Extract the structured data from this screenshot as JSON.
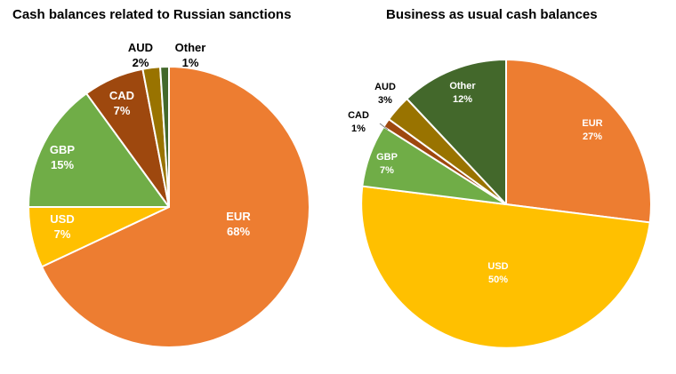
{
  "chart_data": [
    {
      "type": "pie",
      "title": "Cash balances related to Russian sanctions",
      "slices": [
        {
          "label": "EUR",
          "value": 68,
          "value_label": "68%",
          "color": "#ED7D31",
          "label_color": "#ffffff"
        },
        {
          "label": "USD",
          "value": 7,
          "value_label": "7%",
          "color": "#FFC000",
          "label_color": "#ffffff"
        },
        {
          "label": "GBP",
          "value": 15,
          "value_label": "15%",
          "color": "#70AD47",
          "label_color": "#ffffff"
        },
        {
          "label": "CAD",
          "value": 7,
          "value_label": "7%",
          "color": "#9E480E",
          "label_color": "#ffffff"
        },
        {
          "label": "AUD",
          "value": 2,
          "value_label": "2%",
          "color": "#997300",
          "label_color": "#000000"
        },
        {
          "label": "Other",
          "value": 1,
          "value_label": "1%",
          "color": "#43682B",
          "label_color": "#000000"
        }
      ]
    },
    {
      "type": "pie",
      "title": "Business as usual cash balances",
      "slices": [
        {
          "label": "EUR",
          "value": 27,
          "value_label": "27%",
          "color": "#ED7D31",
          "label_color": "#ffffff"
        },
        {
          "label": "USD",
          "value": 50,
          "value_label": "50%",
          "color": "#FFC000",
          "label_color": "#ffffff"
        },
        {
          "label": "GBP",
          "value": 7,
          "value_label": "7%",
          "color": "#70AD47",
          "label_color": "#ffffff"
        },
        {
          "label": "CAD",
          "value": 1,
          "value_label": "1%",
          "color": "#9E480E",
          "label_color": "#000000"
        },
        {
          "label": "AUD",
          "value": 3,
          "value_label": "3%",
          "color": "#997300",
          "label_color": "#000000"
        },
        {
          "label": "Other",
          "value": 12,
          "value_label": "12%",
          "color": "#43682B",
          "label_color": "#ffffff"
        }
      ]
    }
  ]
}
